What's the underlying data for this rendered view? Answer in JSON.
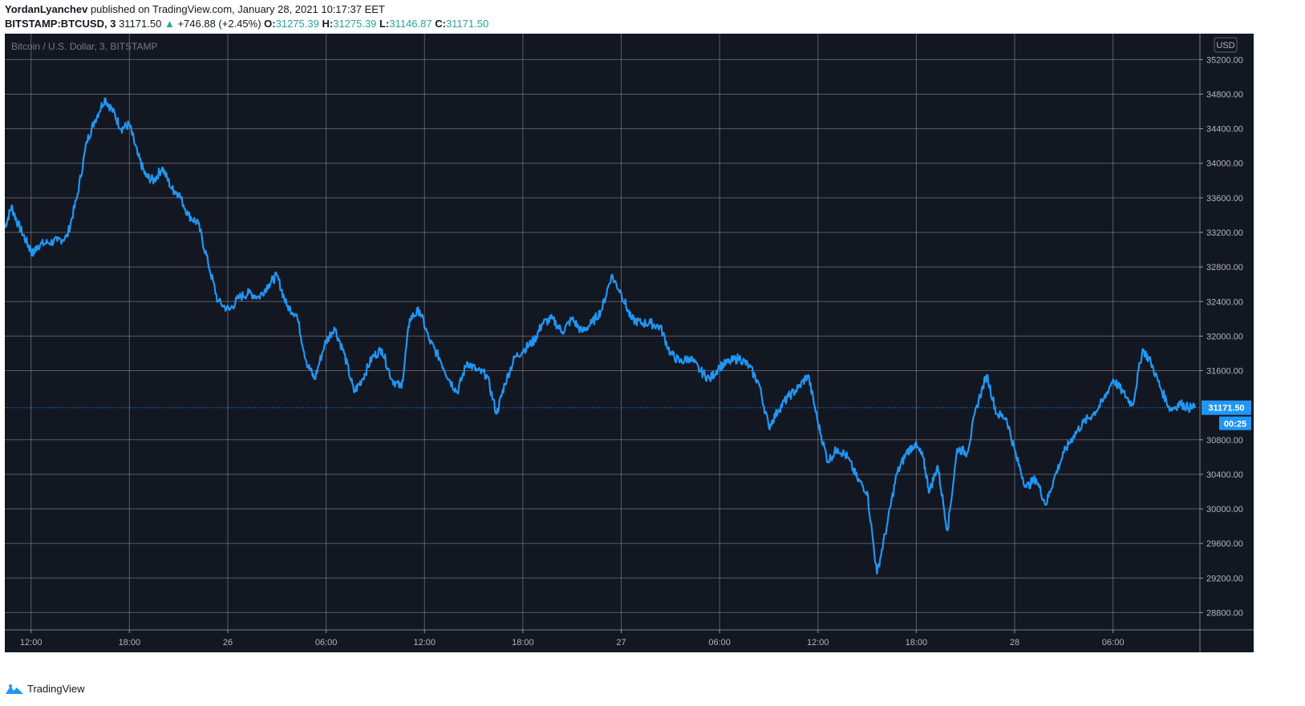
{
  "header": {
    "author": "YordanLyanchev",
    "published_text": "published on TradingView.com, January 28, 2021 10:17:37 EET",
    "symbol": "BITSTAMP:BTCUSD, 3",
    "last": "31171.50",
    "change": "+746.88 (+2.45%)",
    "o_label": "O:",
    "o": "31275.39",
    "h_label": "H:",
    "h": "31275.39",
    "l_label": "L:",
    "l": "31146.87",
    "c_label": "C:",
    "c": "31171.50"
  },
  "footer": {
    "brand": "TradingView"
  },
  "colors": {
    "background": "#131722",
    "grid": "#9598a1",
    "line": "#2196f3",
    "axis_text": "#b2b5be",
    "up": "#26a69a"
  },
  "chart_data": {
    "type": "line",
    "title": "Bitcoin / U.S. Dollar, 3, BITSTAMP",
    "currency_badge": "USD",
    "x_ticks": [
      "12:00",
      "18:00",
      "26",
      "06:00",
      "12:00",
      "18:00",
      "27",
      "06:00",
      "12:00",
      "18:00",
      "28",
      "06:00"
    ],
    "y_ticks": [
      "35200.00",
      "34800.00",
      "34400.00",
      "34000.00",
      "33600.00",
      "33200.00",
      "32800.00",
      "32400.00",
      "32000.00",
      "31600.00",
      "30800.00",
      "30400.00",
      "30000.00",
      "29600.00",
      "29200.00",
      "28800.00"
    ],
    "ylim": [
      28600,
      35500
    ],
    "xlim_hours": [
      -1.6,
      71.3
    ],
    "price_label": "31171.50",
    "countdown": "00:25",
    "series": [
      {
        "x_hours": [
          -1.6,
          -1.2,
          -0.8,
          -0.3,
          0.1,
          0.4,
          1.0,
          1.6,
          2.2,
          2.8,
          3.4,
          3.9,
          4.5,
          5.0,
          5.5,
          6.0,
          6.5,
          7.0,
          7.5,
          8.0,
          8.6,
          9.0,
          9.6,
          10.2,
          10.8,
          11.4,
          12.1,
          12.7,
          13.3,
          13.9,
          14.5,
          15.0,
          15.6,
          16.2,
          16.8,
          17.3,
          17.9,
          18.5,
          19.1,
          19.7,
          20.2,
          20.8,
          21.4,
          22.0,
          22.6,
          23.1,
          23.7,
          24.3,
          24.9,
          25.5,
          26.0,
          26.6,
          27.2,
          27.8,
          28.4,
          28.9,
          29.5,
          30.1,
          30.7,
          31.2,
          31.8,
          32.4,
          33.0,
          33.6,
          34.2,
          34.8,
          35.4,
          36.0,
          36.6,
          37.2,
          37.8,
          38.4,
          39.0,
          39.6,
          40.2,
          40.8,
          41.4,
          42.0,
          42.6,
          43.2,
          43.8,
          44.4,
          45.0,
          45.6,
          46.2,
          46.8,
          47.4,
          48.0,
          48.6,
          49.2,
          49.8,
          50.4,
          51.0,
          51.6,
          52.2,
          52.8,
          53.4,
          53.9,
          54.4,
          54.8,
          55.3,
          55.9,
          56.5,
          57.1,
          57.7,
          58.3,
          58.9,
          59.5,
          60.1,
          60.7,
          61.3,
          61.9,
          62.4,
          63.0,
          63.6,
          64.2,
          64.8,
          65.4,
          66.0,
          66.6,
          67.2,
          67.8,
          68.3,
          68.9,
          69.5,
          70.1,
          70.6,
          71.0
        ],
        "y": [
          33250,
          33500,
          33300,
          33100,
          32950,
          33050,
          33080,
          33100,
          33150,
          33600,
          34250,
          34500,
          34750,
          34600,
          34400,
          34450,
          34100,
          33850,
          33800,
          33950,
          33700,
          33650,
          33400,
          33300,
          32850,
          32400,
          32300,
          32450,
          32500,
          32450,
          32600,
          32700,
          32350,
          32250,
          31700,
          31500,
          31900,
          32100,
          31800,
          31350,
          31500,
          31750,
          31850,
          31500,
          31400,
          32200,
          32300,
          31950,
          31750,
          31500,
          31350,
          31700,
          31600,
          31550,
          31100,
          31450,
          31750,
          31850,
          31950,
          32150,
          32200,
          32050,
          32200,
          32050,
          32150,
          32300,
          32700,
          32500,
          32200,
          32150,
          32150,
          32100,
          31800,
          31700,
          31750,
          31600,
          31500,
          31650,
          31700,
          31750,
          31650,
          31450,
          30950,
          31150,
          31300,
          31400,
          31550,
          31000,
          30550,
          30700,
          30600,
          30350,
          30200,
          29250,
          29800,
          30400,
          30650,
          30750,
          30600,
          30200,
          30500,
          29750,
          30700,
          30650,
          31200,
          31550,
          31100,
          31050,
          30600,
          30250,
          30350,
          30050,
          30350,
          30650,
          30850,
          31000,
          31100,
          31250,
          31500,
          31350,
          31200,
          31850,
          31700,
          31400,
          31150,
          31220,
          31171,
          31171
        ]
      }
    ]
  }
}
